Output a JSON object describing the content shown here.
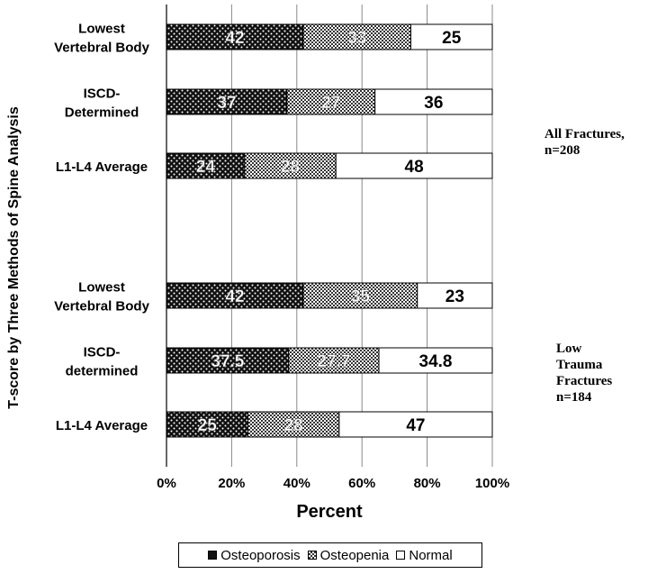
{
  "chart_data": {
    "type": "bar",
    "orientation": "horizontal",
    "stacked": "percent",
    "ylabel": "T-score by Three Methods of Spine Analysis",
    "xlabel": "Percent",
    "xlim": [
      0,
      100
    ],
    "xticks": [
      "0%",
      "20%",
      "40%",
      "60%",
      "80%",
      "100%"
    ],
    "grid": true,
    "legend_position": "bottom",
    "categories": [
      [
        "Lowest",
        "Vertebral Body"
      ],
      [
        "ISCD-",
        "Determined"
      ],
      [
        "L1-L4 Average"
      ],
      [
        "Lowest",
        "Vertebral Body"
      ],
      [
        "ISCD-",
        "determined"
      ],
      [
        "L1-L4 Average"
      ]
    ],
    "series": [
      {
        "name": "Osteoporosis",
        "values": [
          42,
          37,
          24,
          42,
          37.5,
          25
        ],
        "labels": [
          "42",
          "37",
          "24",
          "42",
          "37.5",
          "25"
        ],
        "color": "#1a1a1a",
        "pattern": "dots"
      },
      {
        "name": "Osteopenia",
        "values": [
          33,
          27,
          28,
          35,
          27.7,
          28
        ],
        "labels": [
          "33",
          "27",
          "28",
          "35",
          "27.7",
          "28"
        ],
        "color": "#8a8a8a",
        "pattern": "checker"
      },
      {
        "name": "Normal",
        "values": [
          25,
          36,
          48,
          23,
          34.8,
          47
        ],
        "labels": [
          "25",
          "36",
          "48",
          "23",
          "34.8",
          "47"
        ],
        "color": "#ffffff",
        "pattern": "none"
      }
    ],
    "annotations": [
      {
        "lines": [
          "All Fractures,",
          "n=208"
        ]
      },
      {
        "lines": [
          "Low",
          "Trauma",
          "Fractures",
          "n=184"
        ]
      }
    ]
  }
}
